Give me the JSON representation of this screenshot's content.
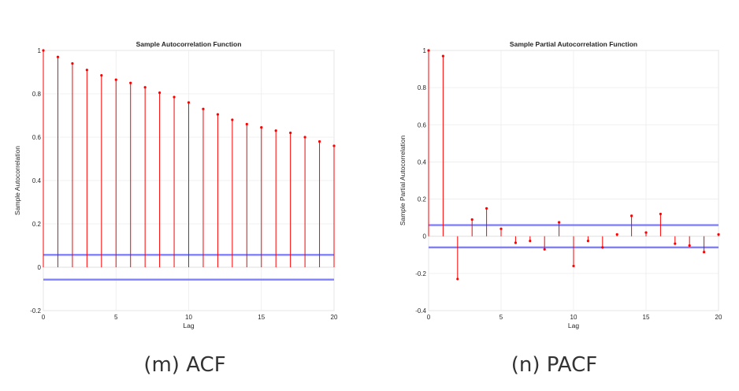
{
  "chart_data": [
    {
      "type": "stem",
      "title": "Sample Autocorrelation Function",
      "xlabel": "Lag",
      "ylabel": "Sample Autocorrelation",
      "xlim": [
        0,
        20
      ],
      "ylim": [
        -0.2,
        1
      ],
      "xticks": [
        "0",
        "5",
        "10",
        "15",
        "20"
      ],
      "yticks": [
        "-0.2",
        "0",
        "0.2",
        "0.4",
        "0.6",
        "0.8",
        "1"
      ],
      "lags": [
        0,
        1,
        2,
        3,
        4,
        5,
        6,
        7,
        8,
        9,
        10,
        11,
        12,
        13,
        14,
        15,
        16,
        17,
        18,
        19,
        20
      ],
      "values": [
        1.0,
        0.97,
        0.94,
        0.91,
        0.885,
        0.865,
        0.85,
        0.83,
        0.805,
        0.785,
        0.76,
        0.73,
        0.705,
        0.68,
        0.66,
        0.645,
        0.63,
        0.62,
        0.6,
        0.58,
        0.56
      ],
      "confidence_bounds": [
        0.057,
        -0.057
      ],
      "grid": true,
      "colors": {
        "stem": "#ff0000",
        "bounds": "#8080ff"
      }
    },
    {
      "type": "stem",
      "title": "Sample Partial Autocorrelation Function",
      "xlabel": "Lag",
      "ylabel": "Sample Partial Autocorrelation",
      "xlim": [
        0,
        20
      ],
      "ylim": [
        -0.4,
        1
      ],
      "xticks": [
        "0",
        "5",
        "10",
        "15",
        "20"
      ],
      "yticks": [
        "-0.4",
        "-0.2",
        "0",
        "0.2",
        "0.4",
        "0.6",
        "0.8",
        "1"
      ],
      "lags": [
        0,
        1,
        2,
        3,
        4,
        5,
        6,
        7,
        8,
        9,
        10,
        11,
        12,
        13,
        14,
        15,
        16,
        17,
        18,
        19,
        20
      ],
      "values": [
        1.0,
        0.97,
        -0.23,
        0.09,
        0.15,
        0.04,
        -0.035,
        -0.025,
        -0.07,
        0.075,
        -0.16,
        -0.025,
        -0.06,
        0.01,
        0.11,
        0.02,
        0.12,
        -0.04,
        -0.05,
        -0.085,
        0.01
      ],
      "confidence_bounds": [
        0.06,
        -0.06
      ],
      "grid": true,
      "colors": {
        "stem": "#ff0000",
        "bounds": "#8080ff"
      }
    }
  ],
  "captions": [
    "(m) ACF",
    "(n) PACF"
  ]
}
